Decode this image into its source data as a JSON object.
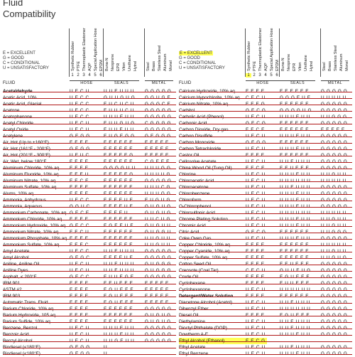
{
  "title": [
    "Fluid",
    "Compatibility"
  ],
  "legend": [
    "E = EXCELLENT",
    "G = GOOD",
    "C = CONDITIONAL",
    "U = UNSATISFACTORY"
  ],
  "hose_columns": [
    "Synthetic Rubber",
    "PTFE",
    "Thermoplastic Elastomer",
    "AQP",
    "Special Application Hose",
    "EPDM"
  ],
  "seal_columns": [
    "Buna-N",
    "Neoprene",
    "EPR",
    "Viton",
    "Urethane",
    "Hytrel"
  ],
  "metal_columns": [
    "Steel",
    "Brass",
    "Stainless Steel",
    "Aluminum",
    "Monel"
  ],
  "column_numbers": [
    "1",
    "2",
    "3",
    "4",
    "5",
    "6"
  ],
  "group_labels": {
    "hose": "HOSE",
    "seals": "SEALS",
    "metal": "METAL",
    "fluid": "FLUID"
  },
  "left_rows": [
    {
      "fluid": "Acetaldehyde",
      "hose": "UECU",
      "seals": "UUEUUU",
      "metal": "GGGGG"
    },
    {
      "fluid": "Acetic Acid, 10%",
      "hose": "UECC",
      "seals": "GUUGUG",
      "metal": "GGUGE"
    },
    {
      "fluid": "Acetic Acid, Glacial",
      "hose": "UECC",
      "seals": "EUCUCU",
      "metal": "GGGCE"
    },
    {
      "fluid": "Acetone",
      "hose": "UECC",
      "seals": "EUUUCU",
      "metal": "GGGGG"
    },
    {
      "fluid": "Acetophenone",
      "hose": "UECC",
      "seals": "UUUEUU",
      "metal": "GGGGG"
    },
    {
      "fluid": "Acetyl Chloride",
      "hose": "UECU",
      "seals": "EUUGUG",
      "metal": "CGGGG"
    },
    {
      "fluid": "Acetyl Oxide",
      "hose": "UECU",
      "seals": "EUUEUU",
      "metal": "GGGGG"
    },
    {
      "fluid": "Acetylene",
      "hose": "GEGG",
      "seals": "EUGEGG",
      "metal": "GEGGG"
    },
    {
      "fluid": "Air, Hot (Up to +160°F)",
      "hose": "EEEE",
      "seals": "EEEEEE",
      "metal": "EEEEE"
    },
    {
      "fluid": "Air, Hot (161°F - 200°F)",
      "hose": "GEGG",
      "seals": "EEEEEE",
      "metal": "EEEEE"
    },
    {
      "fluid": "Air, Hot (201°F - 300°F)",
      "hose": "UEUC",
      "seals": "EEEEEG",
      "metal": "EEEEE"
    },
    {
      "fluid": "Air, Wet, below 180°F",
      "hose": "EEEE",
      "seals": "EEEEEE",
      "metal": "CGEEE"
    },
    {
      "fluid": "Aluminum Chloride, 10% aq",
      "hose": "EEEE",
      "seals": "GGGGUU",
      "metal": "UUUGG"
    },
    {
      "fluid": "Aluminum Fluoride, 10% aq",
      "hose": "EEEU",
      "seals": "EEEEEG",
      "metal": "UUUUG"
    },
    {
      "fluid": "Aluminum Nitrate, 10% aq",
      "hose": "EECE",
      "seals": "EEEEEE",
      "metal": "GGGGG"
    },
    {
      "fluid": "Aluminum Sulfate, 10% aq",
      "hose": "EEEE",
      "seals": "EEEEEE",
      "metal": "UUUCG"
    },
    {
      "fluid": "Alums, 10% aq",
      "hose": "EEEE",
      "seals": "EEEEEE",
      "metal": "UUUGG"
    },
    {
      "fluid": "Ammonia, Anhydrous",
      "hose": "UECC",
      "seals": "EEEEUE",
      "metal": "EUGUG"
    },
    {
      "fluid": "Ammonia, Aqueous",
      "hose": "GGUC",
      "seals": "EEEEUE",
      "metal": "GUGUG"
    },
    {
      "fluid": "Ammonium Carbonate, 10% aq",
      "hose": "GECE",
      "seals": "EEEEU",
      "metal": "GUGUG"
    },
    {
      "fluid": "Ammonium Chloride, 10% aq",
      "hose": "EEEE",
      "seals": "EEEEEE",
      "metal": "UUCUG"
    },
    {
      "fluid": "Ammonium Hydroxide, 10% aq",
      "hose": "GECC",
      "seals": "EGEEUE",
      "metal": "GUGUU"
    },
    {
      "fluid": "Ammonium Nitrate, 10% aq",
      "hose": "EECU",
      "seals": "EEEEEE",
      "metal": "GUGGU"
    },
    {
      "fluid": "Ammonium Phosphate, 10% aq",
      "hose": "EEEE",
      "seals": "EEEEEE",
      "metal": "UUGUU"
    },
    {
      "fluid": "Ammonium Sulfate, 10% aq",
      "hose": "EEEC",
      "seals": "EEEEEE",
      "metal": "UUGUU"
    },
    {
      "fluid": "Amyl Acetate",
      "hose": "UECC",
      "seals": "UUEUUU",
      "metal": "GGGGG"
    },
    {
      "fluid": "Amyl Alcohol",
      "hose": "GEGC",
      "seals": "EEEEUE",
      "metal": "GGGGG"
    },
    {
      "fluid": "Aniline, Aniline Oil",
      "hose": "UECU",
      "seals": "UUEUUU",
      "metal": "GUGGG"
    },
    {
      "fluid": "Aniline Dyes",
      "hose": "UECU",
      "seals": "UUEUUU",
      "metal": "GUGGG"
    },
    {
      "fluid": "Asphalt, < 200°F",
      "hose": "GECC",
      "seals": "EUUEGE",
      "metal": "GGGGG"
    },
    {
      "fluid": "IRM 901",
      "hose": "EEEE",
      "seals": "EEUEEE",
      "metal": "EEEEE"
    },
    {
      "fluid": "ASTM #2",
      "hose": "EEEE",
      "seals": "EGUEEE",
      "metal": "EEEEE"
    },
    {
      "fluid": "IRM 903",
      "hose": "EEEE",
      "seals": "EGUEEE",
      "metal": "EEEEE"
    },
    {
      "fluid": "Automatic Trans. Fluid",
      "hose": "EEEE",
      "seals": "EGUEEE",
      "metal": "EEEEE"
    },
    {
      "fluid": "Barium Chloride, 10% aq",
      "hose": "EEEE",
      "seals": "EEEEEE",
      "metal": "GGGGG"
    },
    {
      "fluid": "Barium Hydroxide, 105 aq",
      "hose": "EEEE",
      "seals": "EEEEEE",
      "metal": "GUGUG"
    },
    {
      "fluid": "Barium Sulfide, 10% aq",
      "hose": "EEEE",
      "seals": "EEEEEE",
      "metal": "GUGUG"
    },
    {
      "fluid": "Benzene, Benzol",
      "hose": "UECU",
      "seals": "UUUEUU",
      "metal": "GGGGG"
    },
    {
      "fluid": "Benzoic Acid",
      "hose": "UECU",
      "seals": "UUUEUU",
      "metal": "GGGGG"
    },
    {
      "fluid": "Benzyl Alcohol",
      "hose": "UECU",
      "seals": "UUGEUU",
      "metal": "GGGGG"
    },
    {
      "fluid": "Biodiesel (<180°F)",
      "hose": "GEGG",
      "seals": "U",
      "metal": ""
    },
    {
      "fluid": "Biodiesel (<180°F)",
      "hose": "GEGG",
      "seals": "U",
      "metal": ""
    }
  ],
  "right_rows": [
    {
      "fluid": "Calcium Hydroxide, 10% aq",
      "hose": "EEEE",
      "seals": "EEEEEE",
      "metal": "GGGGG"
    },
    {
      "fluid": "Calcium Hypochlorite, 10% aq",
      "hose": "CECU",
      "seals": "GGGEUE",
      "metal": "UUUUU"
    },
    {
      "fluid": "Calcium Nitrate, 10% aq",
      "hose": "EEEG",
      "seals": "EEEEEE",
      "metal": "GGGGG"
    },
    {
      "fluid": "Carbitol",
      "hose": "GECG",
      "seals": "GGGGUG",
      "metal": "GGGGG"
    },
    {
      "fluid": "Carbolic Acid (Phenol)",
      "hose": "UECU",
      "seals": "UUUEUU",
      "metal": "UUGGG"
    },
    {
      "fluid": "Carbonic Acid",
      "hose": "GECG",
      "seals": "EEEEEE",
      "metal": "GGGGG"
    },
    {
      "fluid": "Carbon Dioxide, Dry gas",
      "hose": "EECE",
      "seals": "EEEEEE",
      "metal": "EEEEE"
    },
    {
      "fluid": "Carbon Disulfide",
      "hose": "UECU",
      "seals": "UUUEUU",
      "metal": "GGGGG"
    },
    {
      "fluid": "Carbon Monoxide",
      "hose": "GEGG",
      "seals": "EEEEEE",
      "metal": "GGGGG"
    },
    {
      "fluid": "Carbon Tetrachloride",
      "hose": "UECU",
      "seals": "UUUEUU",
      "metal": "GGGGG"
    },
    {
      "fluid": "Castor Oil",
      "hose": "EEEE",
      "seals": "EEEEEE",
      "metal": "GGGGG"
    },
    {
      "fluid": "Cellosolve Acetate",
      "hose": "UECU",
      "seals": "UUEUUU",
      "metal": "GGGGG"
    },
    {
      "fluid": "China Wood Oil (Tung Oil)",
      "hose": "EECE",
      "seals": "EEUEEE",
      "metal": "GGGGG"
    },
    {
      "fluid": "Chlorine",
      "hose": "UECU",
      "seals": "UUUEUU",
      "metal": "UUGUU"
    },
    {
      "fluid": "Chloroacetic Acid",
      "hose": "UECU",
      "seals": "UUUUUU",
      "metal": "UUUUU"
    },
    {
      "fluid": "Chloroacetone",
      "hose": "UECU",
      "seals": "UUEUUU",
      "metal": "GGGGG"
    },
    {
      "fluid": "Chlorobenzene",
      "hose": "UECU",
      "seals": "UUUEUU",
      "metal": "GGGGG"
    },
    {
      "fluid": "Chloroform",
      "hose": "UECU",
      "seals": "UUUEUU",
      "metal": "GGGGG"
    },
    {
      "fluid": "O-Chlorophenol",
      "hose": "UECU",
      "seals": "UUUEUU",
      "metal": "GGGGG"
    },
    {
      "fluid": "Chlorsulfonic Acid",
      "hose": "UECU",
      "seals": "UUUUUU",
      "metal": "UUUUU"
    },
    {
      "fluid": "Chrome Plating Solution",
      "hose": "UECU",
      "seals": "UUUEUU",
      "metal": "UUGUU"
    },
    {
      "fluid": "Chromic Acid",
      "hose": "UECU",
      "seals": "UUUEUU",
      "metal": "UUGUU"
    },
    {
      "fluid": "Citric Acid",
      "hose": "GECG",
      "seals": "EEEEEE",
      "metal": "UUGGG"
    },
    {
      "fluid": "Coke Oven Gas",
      "hose": "UECU",
      "seals": "UUUEUU",
      "metal": "GGGGG"
    },
    {
      "fluid": "Copper Chloride, 10% aq",
      "hose": "EEEE",
      "seals": "EEEEEE",
      "metal": "UUUUU"
    },
    {
      "fluid": "Copper Cyanide, 10% aq",
      "hose": "EEEE",
      "seals": "EEEEEE",
      "metal": "UUGUU"
    },
    {
      "fluid": "Copper Sulfate, 10% aq",
      "hose": "EEEE",
      "seals": "EEEEEE",
      "metal": "UUGUG"
    },
    {
      "fluid": "Cotton Seed Oil",
      "hose": "EEEE",
      "seals": "EEUEEE",
      "metal": "GGGGG"
    },
    {
      "fluid": "Creosote (Coal Tar)",
      "hose": "CECU",
      "seals": "GUUEUG",
      "metal": "GGGGG"
    },
    {
      "fluid": "Crude Oil",
      "hose": "EEEE",
      "seals": "EGUEEE",
      "metal": "GGGGG"
    },
    {
      "fluid": "Cyclohexane",
      "hose": "EEEE",
      "seals": "EUUEEE",
      "metal": "GGGGG"
    },
    {
      "fluid": "Cyclohexanone",
      "hose": "UECU",
      "seals": "UUUUUU",
      "metal": "GGGGG"
    },
    {
      "fluid": "Detergent/Water Solution",
      "hose": "EEEE",
      "seals": "EEEEEE",
      "metal": "GGGGG"
    },
    {
      "fluid": "Diacetone Alcohol (Acetol)",
      "hose": "UECU",
      "seals": "UUEUUU",
      "metal": "GGGGG"
    },
    {
      "fluid": "Dibenzyl Ether",
      "hose": "UECU",
      "seals": "UUUUUU",
      "metal": "GGGGG"
    },
    {
      "fluid": "Diesel Oil",
      "hose": "EEEE",
      "seals": "EGUEEE",
      "metal": "GGGGG"
    },
    {
      "fluid": "Diethylamine",
      "hose": "UECU",
      "seals": "UUEUUU",
      "metal": "GGGGG"
    },
    {
      "fluid": "Dioctyl Phthalate (DOP)",
      "hose": "UECU",
      "seals": "UUEUUU",
      "metal": "GGGGG"
    },
    {
      "fluid": "Dowtherm A-E",
      "hose": "UECU",
      "seals": "UUUEUU",
      "metal": "GGGGG"
    },
    {
      "fluid": "Ethyl Alcohol (Ethanol)",
      "hose": "EECG",
      "seals": "",
      "metal": ""
    },
    {
      "fluid": "Ethyl Acetate",
      "hose": "UECU",
      "seals": "UUEUUU",
      "metal": "GGGGG"
    },
    {
      "fluid": "Ethyl Benzene",
      "hose": "UECU",
      "seals": "UUUEUU",
      "metal": "GGGGG"
    }
  ]
}
